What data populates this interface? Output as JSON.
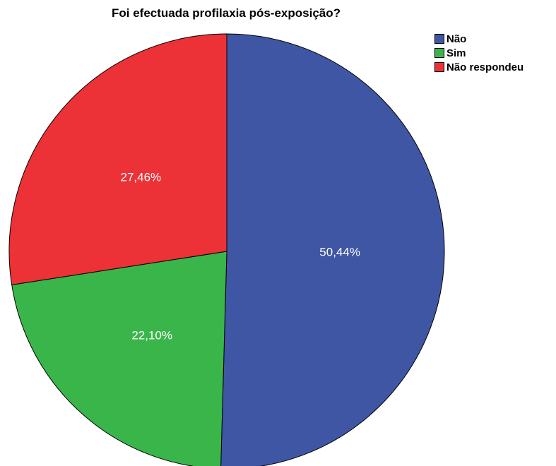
{
  "chart_data": {
    "type": "pie",
    "title": "Foi efectuada profilaxia pós-exposição?",
    "slices": [
      {
        "label": "Não",
        "value": 50.44,
        "value_label": "50,44%",
        "color": "#3f56a5"
      },
      {
        "label": "Sim",
        "value": 22.1,
        "value_label": "22,10%",
        "color": "#3ab54a"
      },
      {
        "label": "Não respondeu",
        "value": 27.46,
        "value_label": "27,46%",
        "color": "#ec3137"
      }
    ],
    "start_angle": "12 o'clock",
    "direction": "clockwise",
    "legend_position": "top-right"
  }
}
